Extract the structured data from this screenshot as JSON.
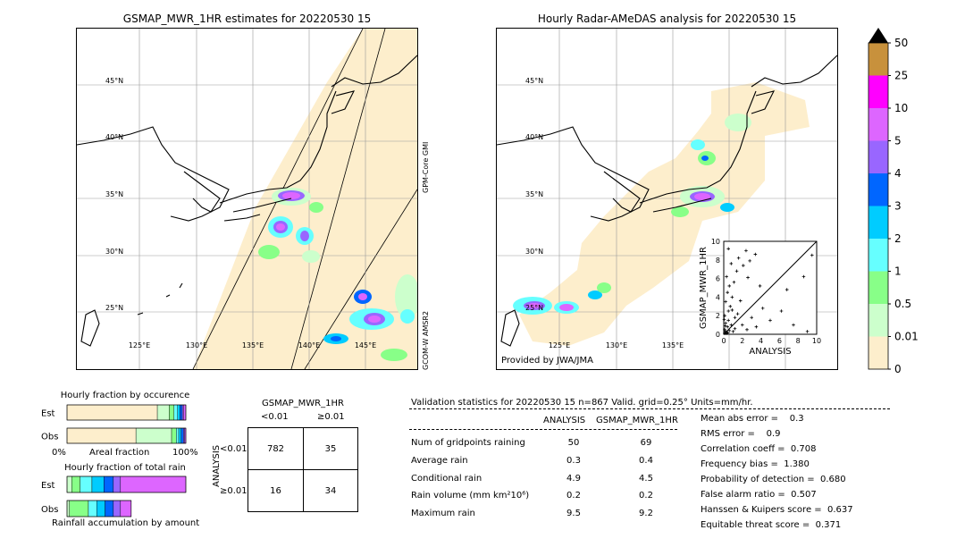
{
  "left_map": {
    "title": "GSMAP_MWR_1HR estimates for 20220530 15",
    "side_labels": [
      "GPM-Core GMI",
      "GCOM-W AMSR2"
    ],
    "lat_labels": [
      "45°N",
      "40°N",
      "35°N",
      "30°N",
      "25°N"
    ],
    "lon_labels": [
      "125°E",
      "130°E",
      "135°E",
      "140°E",
      "145°E"
    ]
  },
  "right_map": {
    "title": "Hourly Radar-AMeDAS analysis for 20220530 15",
    "lat_labels": [
      "45°N",
      "40°N",
      "35°N",
      "30°N",
      "25°N"
    ],
    "lon_labels": [
      "125°E",
      "130°E",
      "135°E"
    ],
    "credit": "Provided by JWA/JMA"
  },
  "colorbar": {
    "ticks": [
      "50",
      "25",
      "10",
      "5",
      "4",
      "3",
      "2",
      "1",
      "0.5",
      "0.01",
      "0"
    ],
    "colors": [
      "#c8913c",
      "#ff00ff",
      "#dd66ff",
      "#9966ff",
      "#0066ff",
      "#00ccff",
      "#66ffff",
      "#88ff88",
      "#ccffcc",
      "#fdeecc"
    ]
  },
  "chart_data": [
    {
      "type": "scatter",
      "title": "",
      "xlabel": "ANALYSIS",
      "ylabel": "GSMAP_MWR_1HR",
      "xlim": [
        0,
        10
      ],
      "ylim": [
        0,
        10
      ],
      "x_ticks": [
        "0",
        "2",
        "4",
        "6",
        "8",
        "10"
      ],
      "y_ticks": [
        "0",
        "2",
        "4",
        "6",
        "8",
        "10"
      ],
      "points": [
        [
          0.1,
          0.1
        ],
        [
          0.2,
          0.3
        ],
        [
          0.1,
          0.5
        ],
        [
          0.3,
          0.2
        ],
        [
          0.4,
          0.8
        ],
        [
          0.2,
          1.2
        ],
        [
          0.5,
          1.5
        ],
        [
          0.1,
          2.0
        ],
        [
          0.3,
          0.1
        ],
        [
          0.6,
          0.4
        ],
        [
          0.8,
          1.0
        ],
        [
          1.0,
          0.3
        ],
        [
          1.2,
          0.6
        ],
        [
          0.5,
          2.5
        ],
        [
          0.7,
          3.0
        ],
        [
          0.2,
          3.5
        ],
        [
          0.9,
          4.0
        ],
        [
          1.5,
          2.2
        ],
        [
          2.0,
          1.0
        ],
        [
          2.5,
          0.5
        ],
        [
          3.0,
          1.8
        ],
        [
          3.5,
          0.8
        ],
        [
          1.8,
          3.6
        ],
        [
          0.4,
          4.5
        ],
        [
          0.6,
          5.2
        ],
        [
          1.1,
          5.6
        ],
        [
          0.3,
          6.2
        ],
        [
          1.4,
          6.8
        ],
        [
          2.1,
          7.4
        ],
        [
          2.8,
          7.9
        ],
        [
          3.4,
          8.6
        ],
        [
          0.8,
          7.6
        ],
        [
          1.6,
          8.2
        ],
        [
          2.4,
          9.0
        ],
        [
          3.9,
          5.2
        ],
        [
          4.2,
          2.8
        ],
        [
          5.0,
          1.5
        ],
        [
          6.2,
          2.5
        ],
        [
          6.8,
          4.8
        ],
        [
          7.5,
          1.0
        ],
        [
          8.6,
          6.2
        ],
        [
          9.5,
          8.5
        ],
        [
          9.0,
          0.3
        ],
        [
          0.5,
          9.2
        ],
        [
          2.6,
          6.1
        ],
        [
          1.2,
          1.8
        ],
        [
          0.9,
          2.6
        ],
        [
          0.15,
          0.9
        ],
        [
          0.05,
          1.6
        ],
        [
          0.45,
          0.15
        ]
      ]
    },
    {
      "type": "bar",
      "title": "Hourly fraction by occurence",
      "categories": [
        "Est",
        "Obs"
      ],
      "x_ticks": [
        "0%",
        "100%"
      ],
      "xlabel": "Areal fraction",
      "series": [
        {
          "values": [
            0.76,
            0.58
          ],
          "color": "#fdeecc"
        },
        {
          "values": [
            0.1,
            0.3
          ],
          "color": "#ccffcc"
        },
        {
          "values": [
            0.04,
            0.04
          ],
          "color": "#88ff88"
        },
        {
          "values": [
            0.03,
            0.02
          ],
          "color": "#66ffff"
        },
        {
          "values": [
            0.02,
            0.02
          ],
          "color": "#00ccff"
        },
        {
          "values": [
            0.02,
            0.02
          ],
          "color": "#0066ff"
        },
        {
          "values": [
            0.01,
            0.01
          ],
          "color": "#9966ff"
        },
        {
          "values": [
            0.02,
            0.01
          ],
          "color": "#dd66ff"
        }
      ]
    },
    {
      "type": "bar",
      "title": "Hourly fraction of total rain",
      "categories": [
        "Est",
        "Obs"
      ],
      "xlabel": "Rainfall accumulation by amount",
      "series": [
        {
          "values": [
            0.04,
            0.02
          ],
          "color": "#ccffcc"
        },
        {
          "values": [
            0.07,
            0.16
          ],
          "color": "#88ff88"
        },
        {
          "values": [
            0.1,
            0.07
          ],
          "color": "#66ffff"
        },
        {
          "values": [
            0.1,
            0.07
          ],
          "color": "#00ccff"
        },
        {
          "values": [
            0.08,
            0.07
          ],
          "color": "#0066ff"
        },
        {
          "values": [
            0.06,
            0.06
          ],
          "color": "#9966ff"
        },
        {
          "values": [
            0.55,
            0.09
          ],
          "color": "#dd66ff"
        }
      ]
    }
  ],
  "contingency": {
    "title": "GSMAP_MWR_1HR",
    "col_labels": [
      "<0.01",
      "≥0.01"
    ],
    "row_labels": [
      "<0.01",
      "≥0.01"
    ],
    "axis_label": "ANALYSIS",
    "cells": [
      [
        "782",
        "35"
      ],
      [
        "16",
        "34"
      ]
    ]
  },
  "validation": {
    "header": "Validation statistics for 20220530 15  n=867 Valid. grid=0.25° Units=mm/hr.",
    "col_analysis": "ANALYSIS",
    "col_gsmap": "GSMAP_MWR_1HR",
    "rows": [
      {
        "label": "Num of gridpoints raining",
        "a": "50",
        "g": "69"
      },
      {
        "label": "Average rain",
        "a": "0.3",
        "g": "0.4"
      },
      {
        "label": "Conditional rain",
        "a": "4.9",
        "g": "4.5"
      },
      {
        "label": "Rain volume (mm km²10⁶)",
        "a": "0.2",
        "g": "0.2"
      },
      {
        "label": "Maximum rain",
        "a": "9.5",
        "g": "9.2"
      }
    ],
    "scores": [
      "Mean abs error =    0.3",
      "RMS error =    0.9",
      "Correlation coeff =  0.708",
      "Frequency bias =  1.380",
      "Probability of detection =  0.680",
      "False alarm ratio =  0.507",
      "Hanssen & Kuipers score =  0.637",
      "Equitable threat score =  0.371"
    ]
  }
}
